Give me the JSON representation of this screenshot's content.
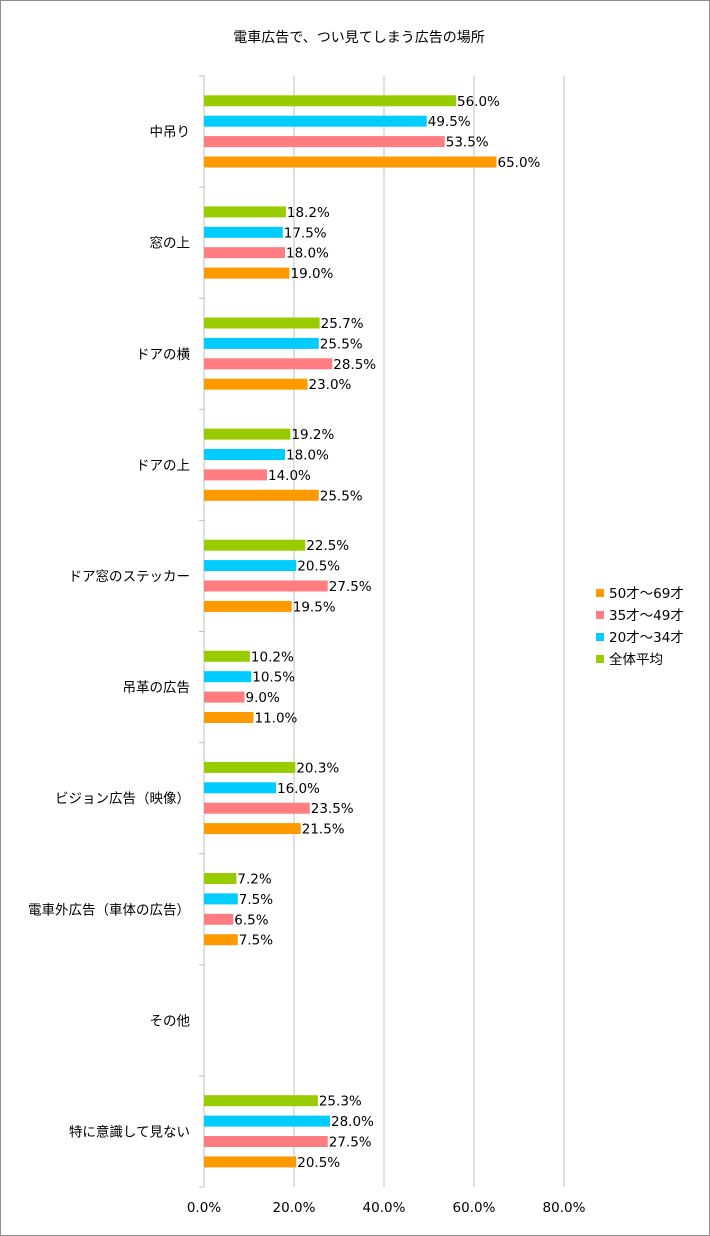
{
  "chart_data": {
    "type": "bar",
    "orientation": "horizontal",
    "title": "電車広告で、つい見てしまう広告の場所",
    "categories": [
      "中吊り",
      "窓の上",
      "ドアの横",
      "ドアの上",
      "ドア窓のステッカー",
      "吊革の広告",
      "ビジョン広告（映像）",
      "電車外広告（車体の広告）",
      "その他",
      "特に意識して見ない"
    ],
    "series": [
      {
        "name": "全体平均",
        "color": "#99cc00",
        "values": [
          56.0,
          18.2,
          25.7,
          19.2,
          22.5,
          10.2,
          20.3,
          7.2,
          null,
          25.3
        ]
      },
      {
        "name": "20才～34才",
        "color": "#00ccff",
        "values": [
          49.5,
          17.5,
          25.5,
          18.0,
          20.5,
          10.5,
          16.0,
          7.5,
          null,
          28.0
        ]
      },
      {
        "name": "35才～49才",
        "color": "#ff7c80",
        "values": [
          53.5,
          18.0,
          28.5,
          14.0,
          27.5,
          9.0,
          23.5,
          6.5,
          null,
          27.5
        ]
      },
      {
        "name": "50才～69才",
        "color": "#ff9900",
        "values": [
          65.0,
          19.0,
          23.0,
          25.5,
          19.5,
          11.0,
          21.5,
          7.5,
          null,
          20.5
        ]
      }
    ],
    "xlim": [
      0,
      80
    ],
    "xticks": [
      0,
      20,
      40,
      60,
      80
    ],
    "xtick_labels": [
      "0.0%",
      "20.0%",
      "40.0%",
      "60.0%",
      "80.0%"
    ],
    "value_suffix": "%",
    "legend_order": [
      "50才～69才",
      "35才～49才",
      "20才～34才",
      "全体平均"
    ],
    "legend_position": "right",
    "grid": "vertical"
  }
}
